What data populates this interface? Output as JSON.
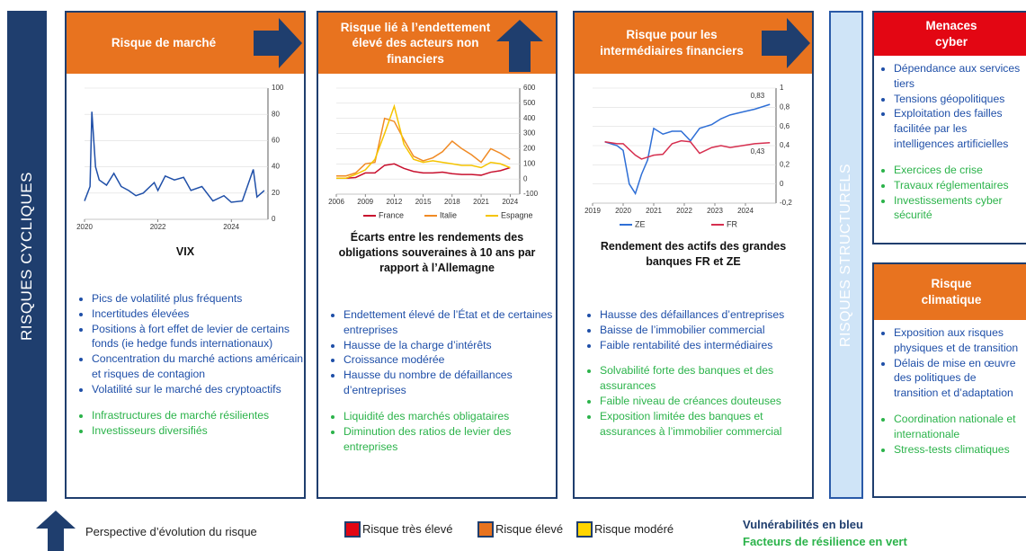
{
  "side_labels": {
    "left": "RISQUES CYCLIQUES",
    "right": "RISQUES STRUCTURELS"
  },
  "panels": [
    {
      "title": "Risque de marché",
      "color": "#e8731f",
      "trend": "right",
      "chart": {
        "type": "line",
        "x": [
          2020.0,
          2020.15,
          2020.2,
          2020.3,
          2020.4,
          2020.6,
          2020.8,
          2021.0,
          2021.2,
          2021.4,
          2021.6,
          2021.9,
          2022.0,
          2022.2,
          2022.45,
          2022.7,
          2022.9,
          2023.2,
          2023.5,
          2023.8,
          2024.0,
          2024.3,
          2024.6,
          2024.7,
          2024.9
        ],
        "values": [
          14,
          25,
          82,
          40,
          30,
          26,
          35,
          25,
          22,
          18,
          20,
          28,
          22,
          33,
          30,
          32,
          22,
          25,
          14,
          18,
          13,
          14,
          38,
          17,
          22
        ],
        "color": "#1f4fa8",
        "xlim": [
          2020,
          2025
        ],
        "xticks": [
          2020,
          2022,
          2024
        ],
        "ylim": [
          0,
          100
        ],
        "yticks": [
          0,
          20,
          40,
          60,
          80,
          100
        ]
      },
      "caption": "VIX",
      "vulnerabilities": [
        "Pics de volatilité plus fréquents",
        "Incertitudes élevées",
        "Positions à fort effet de levier de certains fonds (ie hedge funds internationaux)",
        "Concentration du marché actions américain et risques de contagion",
        "Volatilité sur le marché des cryptoactifs"
      ],
      "resilience": [
        "Infrastructures de marché résilientes",
        "Investisseurs diversifiés"
      ]
    },
    {
      "title": "Risque lié à l’endettement élevé des acteurs non financiers",
      "color": "#e8731f",
      "trend": "up",
      "chart": {
        "type": "line",
        "x": [
          2006,
          2007,
          2008,
          2009,
          2010,
          2011,
          2012,
          2013,
          2014,
          2015,
          2016,
          2017,
          2018,
          2019,
          2020,
          2021,
          2022,
          2023,
          2024
        ],
        "series": [
          {
            "name": "France",
            "color": "#c8102e",
            "values": [
              5,
              5,
              10,
              40,
              40,
              90,
              100,
              70,
              50,
              40,
              40,
              45,
              35,
              30,
              30,
              25,
              45,
              55,
              75
            ]
          },
          {
            "name": "Italie",
            "color": "#f08a24",
            "values": [
              20,
              20,
              40,
              100,
              110,
              400,
              380,
              260,
              150,
              120,
              140,
              180,
              250,
              200,
              160,
              110,
              200,
              170,
              130
            ]
          },
          {
            "name": "Espagne",
            "color": "#f5c400",
            "values": [
              5,
              5,
              30,
              60,
              130,
              300,
              480,
              230,
              130,
              110,
              120,
              110,
              100,
              90,
              90,
              75,
              110,
              100,
              75
            ]
          }
        ],
        "xlim": [
          2006,
          2025
        ],
        "xticks": [
          2006,
          2009,
          2012,
          2015,
          2018,
          2021,
          2024
        ],
        "ylim": [
          -100,
          600
        ],
        "yticks": [
          -100,
          0,
          100,
          200,
          300,
          400,
          500,
          600
        ]
      },
      "caption": "Écarts entre les rendements des obligations souveraines à 10 ans par rapport à l’Allemagne",
      "vulnerabilities": [
        "Endettement élevé de l’État et de certaines entreprises",
        "Hausse de la charge d’intérêts",
        "Croissance modérée",
        "Hausse du nombre de défaillances d’entreprises"
      ],
      "resilience": [
        "Liquidité des marchés obligataires",
        "Diminution des ratios de levier des entreprises"
      ]
    },
    {
      "title": "Risque pour les intermédiaires financiers",
      "color": "#e8731f",
      "trend": "right",
      "chart": {
        "type": "line",
        "x": [
          2019.4,
          2019.8,
          2020.0,
          2020.2,
          2020.4,
          2020.6,
          2020.8,
          2021.0,
          2021.3,
          2021.6,
          2021.9,
          2022.2,
          2022.5,
          2022.9,
          2023.2,
          2023.5,
          2023.9,
          2024.3,
          2024.8
        ],
        "series": [
          {
            "name": "ZE",
            "color": "#2f6fd6",
            "end_label": "0,83",
            "values": [
              0.44,
              0.4,
              0.35,
              0.0,
              -0.1,
              0.1,
              0.25,
              0.58,
              0.52,
              0.55,
              0.55,
              0.45,
              0.58,
              0.62,
              0.68,
              0.72,
              0.75,
              0.78,
              0.83
            ]
          },
          {
            "name": "FR",
            "color": "#d62f4f",
            "end_label": "0,43",
            "values": [
              0.44,
              0.42,
              0.42,
              0.36,
              0.3,
              0.26,
              0.28,
              0.3,
              0.31,
              0.42,
              0.45,
              0.44,
              0.32,
              0.38,
              0.4,
              0.38,
              0.4,
              0.42,
              0.43
            ]
          }
        ],
        "xlim": [
          2019,
          2025
        ],
        "xticks": [
          2019,
          2020,
          2021,
          2022,
          2023,
          2024
        ],
        "ylim": [
          -0.2,
          1
        ],
        "yticks": [
          {
            "value": -0.2,
            "label": "-0,2"
          },
          0,
          {
            "value": 0.2,
            "label": "0,2"
          },
          {
            "value": 0.4,
            "label": "0,4"
          },
          {
            "value": 0.6,
            "label": "0,6"
          },
          {
            "value": 0.8,
            "label": "0,8"
          },
          1
        ]
      },
      "caption": "Rendement des actifs des grandes banques FR et ZE",
      "vulnerabilities": [
        "Hausse des défaillances d’entreprises",
        "Baisse de l’immobilier commercial",
        "Faible rentabilité des intermédiaires"
      ],
      "resilience": [
        "Solvabilité forte des banques et des assurances",
        "Faible niveau de créances douteuses",
        "Exposition limitée des banques et assurances à l’immobilier commercial"
      ]
    }
  ],
  "right_boxes": [
    {
      "title": "Menaces cyber",
      "color": "#e30613",
      "vulnerabilities": [
        "Dépendance aux services tiers",
        "Tensions géopolitiques",
        "Exploitation des failles facilitée par les intelligences artificielles"
      ],
      "resilience": [
        "Exercices de crise",
        "Travaux réglementaires",
        "Investissements cyber sécurité"
      ]
    },
    {
      "title": "Risque climatique",
      "color": "#e8731f",
      "vulnerabilities": [
        "Exposition aux risques physiques et de transition",
        "Délais de mise en œuvre des politiques de transition et d’adaptation"
      ],
      "resilience": [
        "Coordination nationale et internationale",
        "Stress-tests climatiques"
      ]
    }
  ],
  "legend": {
    "perspective": "Perspective d’évolution du risque",
    "levels": [
      {
        "label": "Risque très élevé",
        "color": "#e30613"
      },
      {
        "label": "Risque élevé",
        "color": "#e8731f"
      },
      {
        "label": "Risque modéré",
        "color": "#ffd500"
      }
    ],
    "vulnerabilities_note": "Vulnérabilités en bleu",
    "resilience_note": "Facteurs de résilience en vert"
  }
}
